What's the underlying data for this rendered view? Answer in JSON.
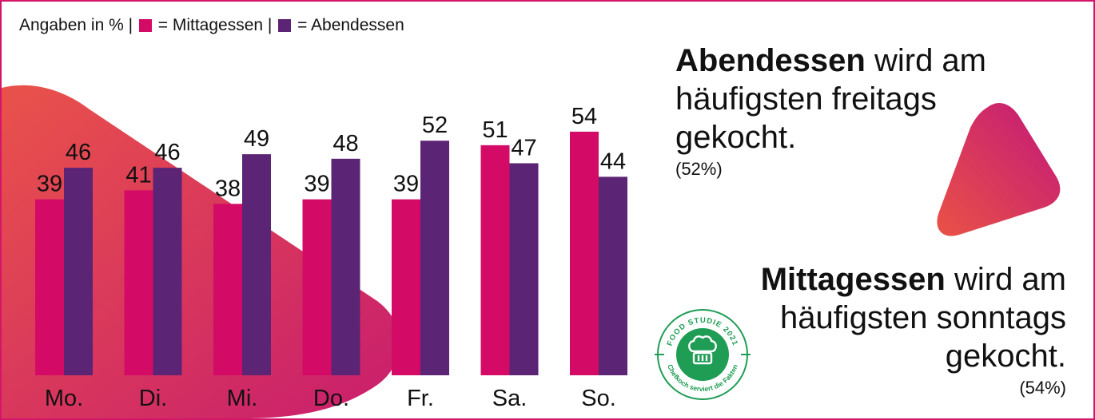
{
  "legend": {
    "prefix": "Angaben in % |",
    "series1": "= Mittagessen |",
    "series2": "= Abendessen"
  },
  "colors": {
    "mittagessen": "#d40b66",
    "abendessen": "#5c2474",
    "border": "#d4156a",
    "badge": "#1f9d55"
  },
  "callout1": {
    "bold": "Abendessen",
    "rest": " wird am häufigsten freitags gekocht.",
    "pct": "(52%)"
  },
  "callout2": {
    "bold": "Mittagessen",
    "rest": " wird am häufigsten sonntags gekocht.",
    "pct": "(54%)"
  },
  "badge": {
    "top_text": "FOOD STUDIE 2021",
    "bottom_text": "Chefkoch serviert die Fakten",
    "icon": "chef-hat-icon"
  },
  "chart_data": {
    "type": "bar",
    "categories": [
      "Mo.",
      "Di.",
      "Mi.",
      "Do.",
      "Fr.",
      "Sa.",
      "So."
    ],
    "series": [
      {
        "name": "Mittagessen",
        "values": [
          39,
          41,
          38,
          39,
          39,
          51,
          54
        ]
      },
      {
        "name": "Abendessen",
        "values": [
          46,
          46,
          49,
          48,
          52,
          47,
          44
        ]
      }
    ],
    "ylabel": "Angaben in %",
    "ylim": [
      0,
      100
    ],
    "grid": false,
    "legend": "top-left"
  }
}
